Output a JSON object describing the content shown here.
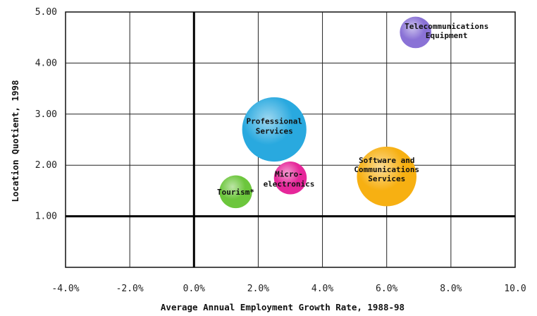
{
  "chart_data": {
    "type": "scatter",
    "xlabel": "Average Annual Employment Growth Rate, 1988-98",
    "ylabel": "Location Quotient, 1998",
    "xlim": [
      -4.0,
      10.0
    ],
    "ylim": [
      0.0,
      5.0
    ],
    "x_ticks": [
      "-4.0%",
      "-2.0%",
      "0.0%",
      "2.0%",
      "4.0%",
      "6.0%",
      "8.0%",
      "10.0"
    ],
    "y_ticks": [
      "5.00",
      "4.00",
      "3.00",
      "2.00",
      "1.00"
    ],
    "grid": true,
    "reference_lines": {
      "x": 0.0,
      "y": 1.0
    },
    "points": [
      {
        "x": 6.9,
        "y": 4.6,
        "size": 0.12,
        "color": "#8a72d6",
        "label": [
          "Telecommunications",
          "Equipment"
        ]
      },
      {
        "x": 2.5,
        "y": 2.7,
        "size": 0.5,
        "color": "#29a9df",
        "label": [
          "Professional",
          "Services"
        ]
      },
      {
        "x": 6.0,
        "y": 1.78,
        "size": 0.43,
        "color": "#f7b012",
        "label": [
          "Software and",
          "Communications",
          "Services"
        ]
      },
      {
        "x": 3.0,
        "y": 1.75,
        "size": 0.13,
        "color": "#e6279a",
        "label": [
          "Micro-",
          "electronics"
        ]
      },
      {
        "x": 1.3,
        "y": 1.48,
        "size": 0.13,
        "color": "#6cc63c",
        "label": [
          "Tourism*"
        ]
      }
    ]
  }
}
